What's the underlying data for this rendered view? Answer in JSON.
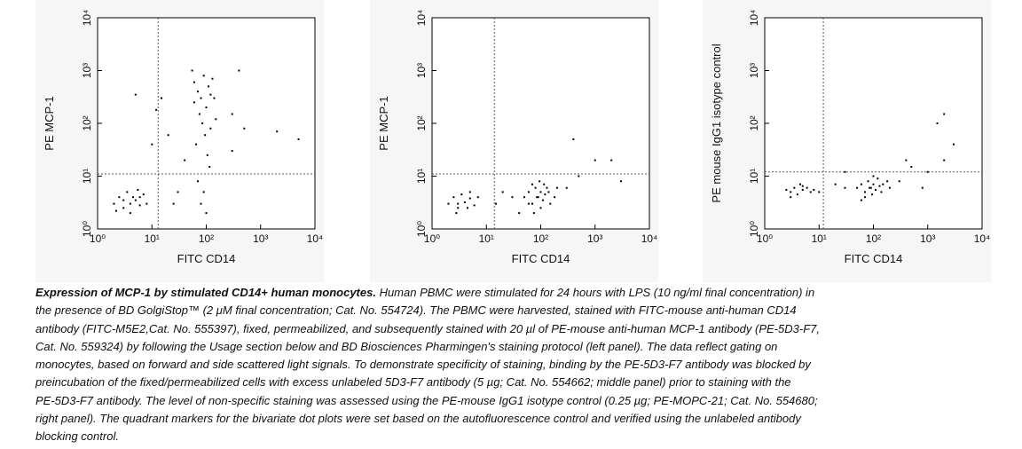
{
  "chart_data": [
    {
      "type": "scatter",
      "ylabel": "PE MCP-1",
      "xlabel": "FITC CD14",
      "log_x": true,
      "log_y": true,
      "xlim": [
        1,
        10000
      ],
      "ylim": [
        1,
        10000
      ],
      "xticks": [
        {
          "value": 1,
          "label": "10⁰"
        },
        {
          "value": 10,
          "label": "10¹"
        },
        {
          "value": 100,
          "label": "10²"
        },
        {
          "value": 1000,
          "label": "10³"
        },
        {
          "value": 10000,
          "label": "10⁴"
        }
      ],
      "yticks": [
        {
          "value": 1,
          "label": "10⁰"
        },
        {
          "value": 10,
          "label": "10¹"
        },
        {
          "value": 100,
          "label": "10²"
        },
        {
          "value": 1000,
          "label": "10³"
        },
        {
          "value": 10000,
          "label": "10⁴"
        }
      ],
      "quadrant_x": 13,
      "quadrant_y": 11,
      "series": [
        {
          "color": "#000000",
          "x": [
            2,
            2.5,
            3,
            3.5,
            4,
            4.5,
            5,
            6,
            7,
            3,
            2.2,
            5.5,
            8,
            4,
            6,
            60,
            70,
            80,
            90,
            100,
            110,
            120,
            75,
            85,
            95,
            65,
            105,
            115,
            70,
            90,
            80,
            100,
            60,
            130,
            140,
            55,
            150,
            120,
            15,
            5,
            20,
            30,
            25,
            300,
            500,
            2000,
            5000,
            40,
            10,
            300,
            12,
            400
          ],
          "values": [
            3,
            4,
            2.5,
            5,
            3,
            4,
            3.5,
            2.8,
            4.5,
            3.5,
            2.2,
            5.5,
            3,
            2,
            4,
            600,
            400,
            300,
            800,
            200,
            500,
            350,
            150,
            100,
            60,
            40,
            25,
            15,
            8,
            5,
            3,
            2,
            250,
            700,
            300,
            1000,
            120,
            80,
            300,
            350,
            60,
            5,
            3,
            150,
            80,
            70,
            50,
            20,
            40,
            30,
            180,
            1000
          ]
        }
      ]
    },
    {
      "type": "scatter",
      "ylabel": "PE MCP-1",
      "xlabel": "FITC CD14",
      "log_x": true,
      "log_y": true,
      "xlim": [
        1,
        10000
      ],
      "ylim": [
        1,
        10000
      ],
      "xticks": [
        {
          "value": 1,
          "label": "10⁰"
        },
        {
          "value": 10,
          "label": "10¹"
        },
        {
          "value": 100,
          "label": "10²"
        },
        {
          "value": 1000,
          "label": "10³"
        },
        {
          "value": 10000,
          "label": "10⁴"
        }
      ],
      "yticks": [
        {
          "value": 1,
          "label": "10⁰"
        },
        {
          "value": 10,
          "label": "10¹"
        },
        {
          "value": 100,
          "label": "10²"
        },
        {
          "value": 1000,
          "label": "10³"
        },
        {
          "value": 10000,
          "label": "10⁴"
        }
      ],
      "quadrant_x": 14,
      "quadrant_y": 11,
      "series": [
        {
          "color": "#000000",
          "x": [
            2,
            2.5,
            3,
            3.5,
            4,
            5,
            6,
            3,
            4.5,
            7,
            2.8,
            5,
            50,
            60,
            70,
            80,
            90,
            100,
            110,
            120,
            130,
            150,
            70,
            100,
            85,
            140,
            180,
            60,
            200,
            95,
            75,
            115,
            20,
            30,
            15,
            300,
            500,
            1000,
            2000,
            400,
            3000,
            40
          ],
          "values": [
            3,
            4,
            2.5,
            4.5,
            3.2,
            3.8,
            2.8,
            3,
            2.5,
            4,
            2,
            5,
            4,
            5,
            3,
            6,
            4,
            5,
            3.5,
            4.5,
            6,
            3,
            7,
            2.5,
            4,
            5,
            4,
            3,
            6,
            8,
            2,
            7,
            5,
            4,
            3,
            6,
            10,
            20,
            20,
            50,
            8,
            2
          ]
        }
      ]
    },
    {
      "type": "scatter",
      "ylabel": "PE mouse IgG1 isotype control",
      "xlabel": "FITC CD14",
      "log_x": true,
      "log_y": true,
      "xlim": [
        1,
        10000
      ],
      "ylim": [
        1,
        10000
      ],
      "xticks": [
        {
          "value": 1,
          "label": "10⁰"
        },
        {
          "value": 10,
          "label": "10¹"
        },
        {
          "value": 100,
          "label": "10²"
        },
        {
          "value": 1000,
          "label": "10³"
        },
        {
          "value": 10000,
          "label": "10⁴"
        }
      ],
      "yticks": [
        {
          "value": 1,
          "label": "10⁰"
        },
        {
          "value": 10,
          "label": "10¹"
        },
        {
          "value": 100,
          "label": "10²"
        },
        {
          "value": 1000,
          "label": "10³"
        },
        {
          "value": 10000,
          "label": "10⁴"
        }
      ],
      "quadrant_x": 12,
      "quadrant_y": 12,
      "series": [
        {
          "color": "#000000",
          "x": [
            3,
            3.5,
            4,
            5,
            6,
            7,
            4.5,
            8,
            3,
            5,
            10,
            2.5,
            50,
            60,
            70,
            80,
            90,
            100,
            110,
            120,
            130,
            150,
            70,
            100,
            85,
            140,
            180,
            200,
            60,
            95,
            20,
            30,
            300,
            500,
            1000,
            2000,
            1500,
            2000,
            3000,
            400,
            30,
            800
          ],
          "values": [
            5,
            6,
            4.5,
            5.5,
            6,
            5,
            7,
            5.5,
            4,
            6.5,
            5,
            5.5,
            6,
            7,
            5,
            8,
            6,
            7,
            5.5,
            9,
            6.5,
            7,
            4,
            10,
            6,
            5,
            8,
            6,
            3.5,
            4.5,
            7,
            6,
            8,
            15,
            12,
            20,
            100,
            150,
            40,
            20,
            12,
            6
          ]
        }
      ]
    }
  ],
  "caption": {
    "title": "Expression of MCP-1 by stimulated CD14+ human monocytes.",
    "lines": [
      " Human PBMC were stimulated for 24 hours with LPS (10 ng/ml final concentration) in",
      "the presence of BD GolgiStop™ (2 μM final concentration; Cat. No. 554724). The PBMC were harvested, stained with FITC-mouse anti-human CD14",
      "antibody (FITC-M5E2,Cat. No. 555397), fixed, permeabilized, and subsequently stained with 20 µl of PE-mouse anti-human MCP-1 antibody (PE-5D3-F7,",
      "Cat. No. 559324) by following the Usage section below and BD Biosciences Pharmingen's staining protocol (left panel). The data reflect gating on",
      "monocytes, based on forward and side scattered light signals. To demonstrate specificity of staining, binding by the PE-5D3-F7 antibody was blocked by",
      "preincubation of the fixed/permeabilized cells with excess unlabeled 5D3-F7 antibody (5 µg; Cat. No. 554662; middle panel) prior to staining with the",
      "PE-5D3-F7 antibody. The level of non-specific staining was assessed using the PE-mouse IgG1 isotype control (0.25 µg; PE-MOPC-21; Cat. No. 554680;",
      "right panel). The quadrant markers for the bivariate dot plots were set based on the autofluorescence control and verified using the unlabeled antibody",
      "blocking control."
    ]
  }
}
